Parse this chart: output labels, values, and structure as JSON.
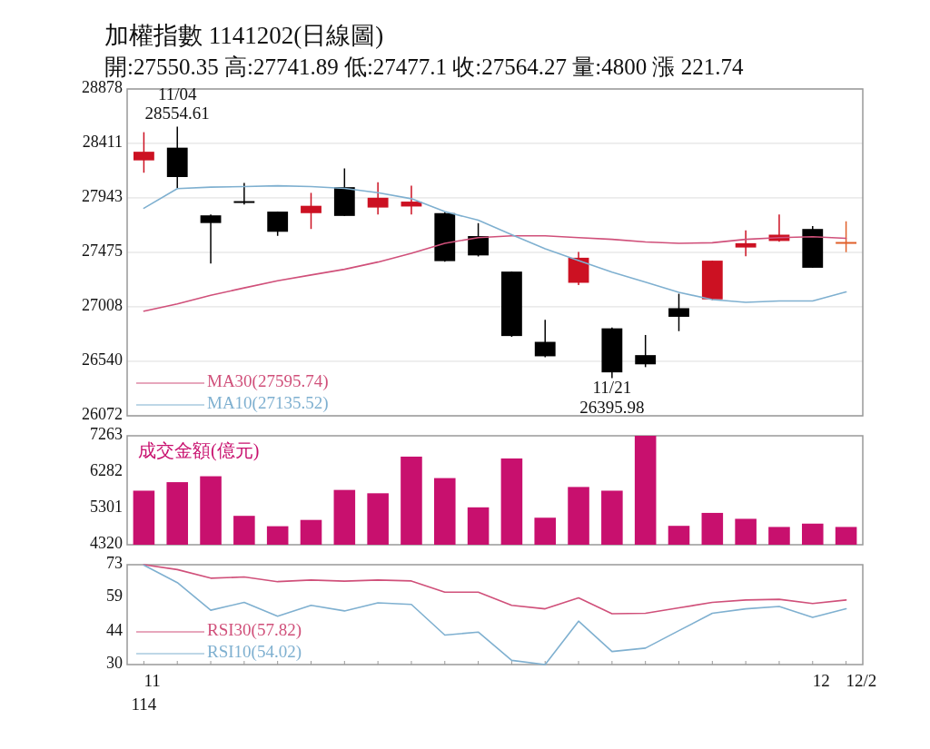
{
  "chart_data": [
    {
      "type": "candlestick",
      "title": "加權指數 1141202(日線圖)",
      "subtitle": "開:27550.35 高:27741.89 低:27477.1 收:27564.27 量:4800 漲 221.74",
      "categories": [
        null,
        null,
        null,
        null,
        null,
        null,
        null,
        null,
        null,
        null,
        null,
        null,
        null,
        null,
        null,
        null,
        null,
        null,
        null,
        null,
        null,
        null
      ],
      "ohlc": [
        [
          28265,
          28507,
          28159,
          28339
        ],
        [
          28374,
          28554.61,
          28027,
          28122
        ],
        [
          27793,
          27800,
          27380,
          27727
        ],
        [
          27915,
          28072,
          27887,
          27905
        ],
        [
          27825,
          27825,
          27617,
          27652
        ],
        [
          27812,
          27986,
          27676,
          27875
        ],
        [
          28035,
          28196,
          27788,
          27788
        ],
        [
          27860,
          28077,
          27800,
          27944
        ],
        [
          27869,
          28047,
          27800,
          27911
        ],
        [
          27812,
          27820,
          27395,
          27400
        ],
        [
          27615,
          27726,
          27440,
          27449
        ],
        [
          27310,
          27310,
          26750,
          26757
        ],
        [
          26707,
          26897,
          26575,
          26583
        ],
        [
          27214,
          27478,
          27194,
          27429
        ],
        [
          26823,
          26830,
          26395.98,
          26445
        ],
        [
          26593,
          26766,
          26490,
          26514
        ],
        [
          26996,
          27120,
          26799,
          26922
        ],
        [
          27072,
          27404,
          27065,
          27404
        ],
        [
          27517,
          27664,
          27442,
          27554
        ],
        [
          27573,
          27800,
          27567,
          27627
        ],
        [
          27676,
          27701,
          27343,
          27343
        ],
        [
          27550.35,
          27741.89,
          27477.1,
          27564.27
        ]
      ],
      "colors": [
        "#cc1122",
        "#000000",
        "#000000",
        "#000000",
        "#000000",
        "#cc1122",
        "#000000",
        "#cc1122",
        "#cc1122",
        "#000000",
        "#000000",
        "#000000",
        "#000000",
        "#cc1122",
        "#000000",
        "#000000",
        "#000000",
        "#cc1122",
        "#cc1122",
        "#cc1122",
        "#000000",
        "#e0602a"
      ],
      "series": [
        {
          "name": "MA30(27595.74)",
          "type": "line",
          "color": "#d0507a",
          "values": [
            26971,
            27033,
            27107,
            27170,
            27231,
            27281,
            27330,
            27392,
            27467,
            27553,
            27602,
            27617,
            27617,
            27602,
            27587,
            27565,
            27553,
            27558,
            27587,
            27602,
            27610,
            27595.74
          ]
        },
        {
          "name": "MA10(27135.52)",
          "type": "line",
          "color": "#7fb0d0",
          "values": [
            27854,
            28023,
            28035,
            28040,
            28047,
            28040,
            28025,
            27988,
            27936,
            27825,
            27751,
            27627,
            27506,
            27404,
            27305,
            27219,
            27132,
            27070,
            27046,
            27058,
            27058,
            27135.52
          ]
        }
      ],
      "ylim": [
        26072,
        28878
      ],
      "yticks": [
        26072,
        26540,
        27008,
        27475,
        27943,
        28411,
        28878
      ],
      "grid": "y",
      "legend": "bottom left",
      "tick_labels": "y",
      "annotations": [
        "11/04\n28554.61",
        "11/21\n26395.98"
      ]
    },
    {
      "type": "bar",
      "title": "成交金額(億元)",
      "categories": [
        null,
        null,
        null,
        null,
        null,
        null,
        null,
        null,
        null,
        null,
        null,
        null,
        null,
        null,
        null,
        null,
        null,
        null,
        null,
        null,
        null,
        null
      ],
      "values": [
        5780,
        6010,
        6170,
        5100,
        4820,
        4990,
        5800,
        5710,
        6700,
        6120,
        5330,
        6650,
        5050,
        5880,
        5780,
        7263,
        4830,
        5180,
        5020,
        4800,
        4890,
        4800
      ],
      "color": "#c8106e",
      "ylim": [
        4320,
        7263
      ],
      "yticks": [
        4320,
        5301,
        6282,
        7263
      ],
      "tick_labels": "y"
    },
    {
      "type": "line",
      "annotations": [
        "114"
      ],
      "categories": [
        "11",
        null,
        null,
        null,
        null,
        null,
        null,
        null,
        null,
        null,
        null,
        null,
        null,
        null,
        null,
        null,
        null,
        null,
        null,
        null,
        "12",
        "12/2"
      ],
      "series": [
        {
          "name": "RSI30(57.82)",
          "color": "#d0507a",
          "values": [
            73,
            70.9,
            67.2,
            67.7,
            65.7,
            66.4,
            65.9,
            66.4,
            66.0,
            61.2,
            61.2,
            55.5,
            54.0,
            58.7,
            51.9,
            52.1,
            54.4,
            56.8,
            57.8,
            58.1,
            56.3,
            57.82
          ]
        },
        {
          "name": "RSI10(54.02)",
          "color": "#7fb0d0",
          "values": [
            72.8,
            65.3,
            53.4,
            56.8,
            50.8,
            55.5,
            53.1,
            56.6,
            55.9,
            42.7,
            44.0,
            31.8,
            30,
            48.7,
            35.6,
            37.1,
            44.6,
            52.1,
            54.0,
            55.0,
            50.3,
            54.02
          ]
        }
      ],
      "ylim": [
        30,
        73
      ],
      "yticks": [
        30,
        44,
        59,
        73
      ],
      "legend": "bottom left"
    }
  ]
}
